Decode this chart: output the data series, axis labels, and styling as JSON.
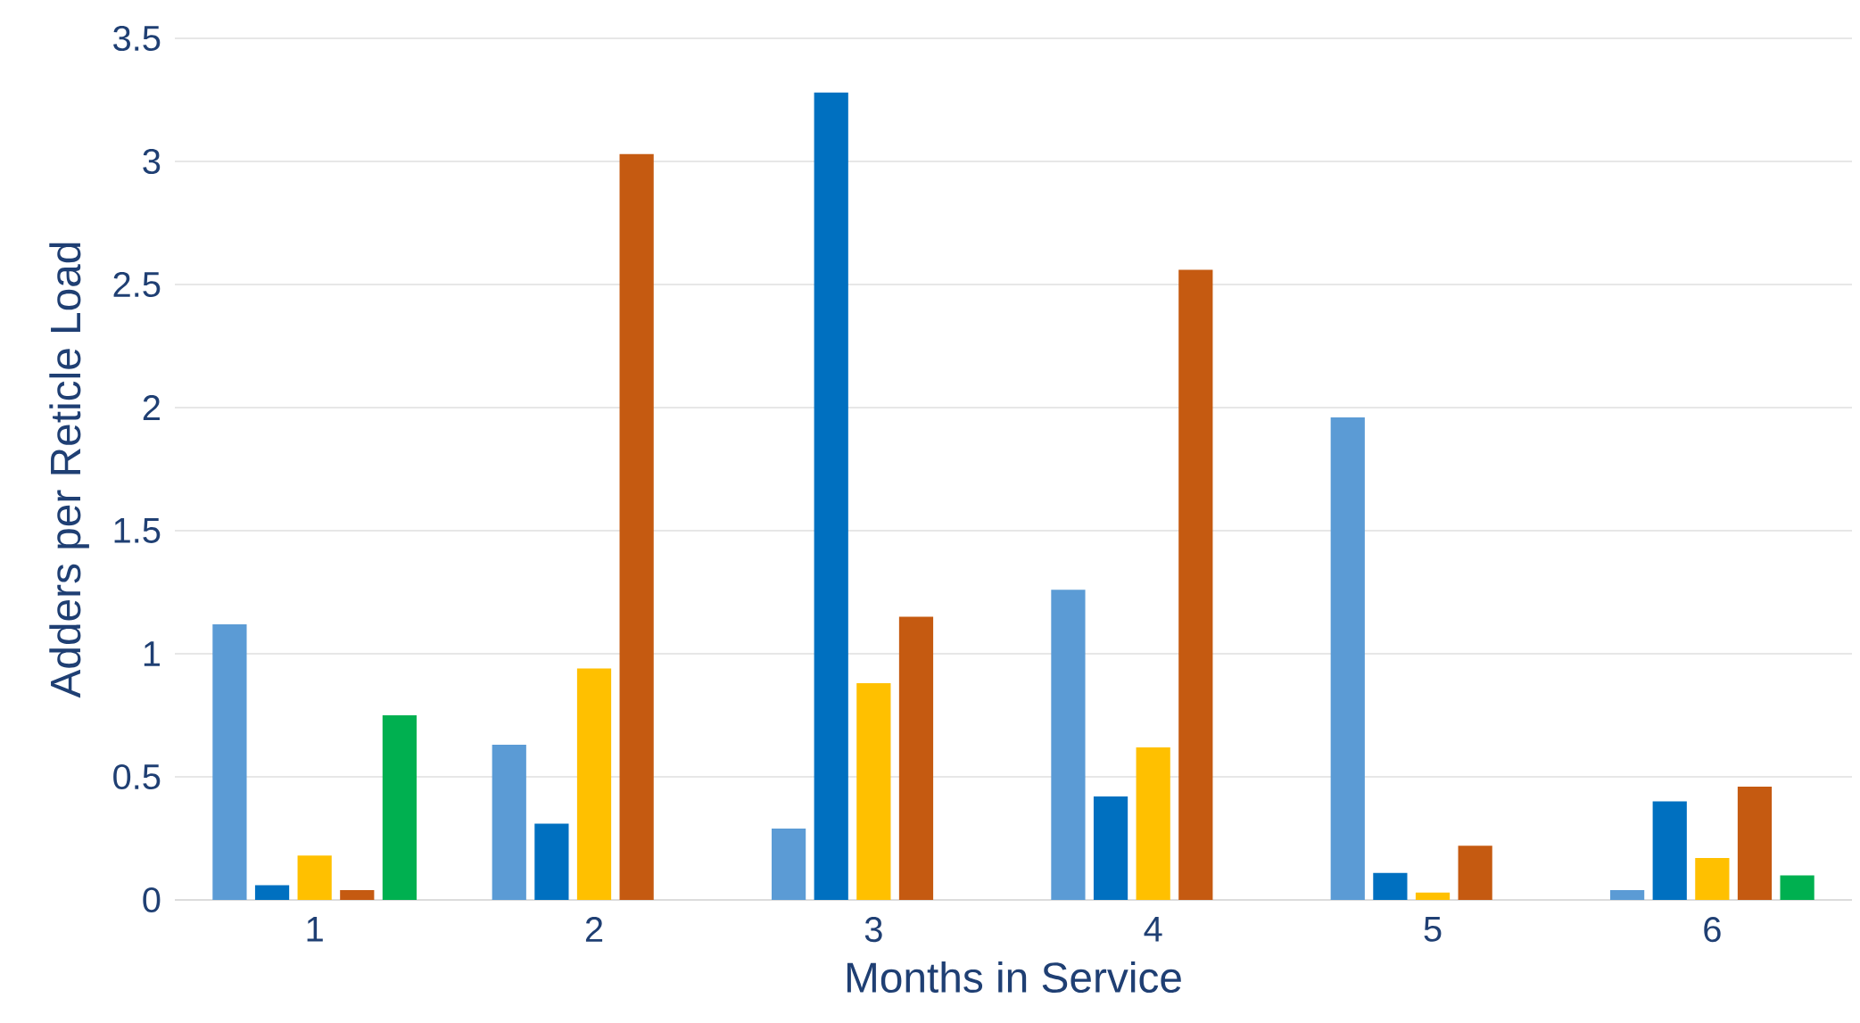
{
  "chart_data": {
    "type": "bar",
    "xlabel": "Months in Service",
    "ylabel": "Adders per Reticle Load",
    "categories": [
      "1",
      "2",
      "3",
      "4",
      "5",
      "6"
    ],
    "series": [
      {
        "color": "#5b9bd5",
        "values": [
          1.12,
          0.63,
          0.29,
          1.26,
          1.96,
          0.04
        ]
      },
      {
        "color": "#0070c0",
        "values": [
          0.06,
          0.31,
          3.28,
          0.42,
          0.11,
          0.4
        ]
      },
      {
        "color": "#ffc000",
        "values": [
          0.18,
          0.94,
          0.88,
          0.62,
          0.03,
          0.17
        ]
      },
      {
        "color": "#c55a11",
        "values": [
          0.04,
          3.03,
          1.15,
          2.56,
          0.22,
          0.46
        ]
      },
      {
        "color": "#00b050",
        "values": [
          0.75,
          null,
          null,
          null,
          null,
          0.1
        ]
      }
    ],
    "ylim": [
      0,
      3.5
    ],
    "yticks": [
      0,
      0.5,
      1,
      1.5,
      2,
      2.5,
      3,
      3.5
    ],
    "grid": "y"
  }
}
